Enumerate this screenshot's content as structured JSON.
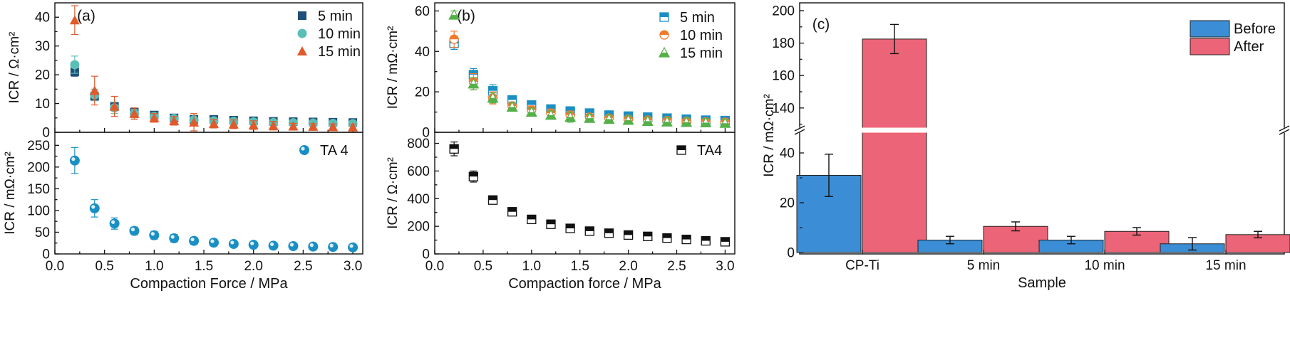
{
  "chart_data": [
    {
      "id": "a-top",
      "type": "scatter",
      "panel_label": "(a)",
      "ylabel": "ICR / Ω·cm²",
      "xlim": [
        0,
        3.1
      ],
      "ylim": [
        0,
        45
      ],
      "yticks": [
        0,
        10,
        20,
        30,
        40
      ],
      "legend_position": "top-right",
      "x": [
        0.2,
        0.4,
        0.6,
        0.8,
        1.0,
        1.2,
        1.4,
        1.6,
        1.8,
        2.0,
        2.2,
        2.4,
        2.6,
        2.8,
        3.0
      ],
      "series": [
        {
          "name": "5 min",
          "marker": "square",
          "color": "#1f4e79",
          "values": [
            21,
            12.5,
            9,
            7,
            6,
            5,
            4.5,
            4.5,
            4.2,
            4,
            3.8,
            3.7,
            3.6,
            3.5,
            3.4
          ],
          "errors": [
            1.5,
            1.5,
            1.5,
            1,
            1,
            1,
            1,
            0.8,
            0.8,
            0.8,
            0.8,
            0.8,
            0.8,
            0.8,
            0.8
          ]
        },
        {
          "name": "10 min",
          "marker": "circle",
          "color": "#5bbfb5",
          "values": [
            23.5,
            13,
            8.5,
            6.5,
            5.5,
            4.8,
            4.3,
            4,
            3.8,
            3.6,
            3.4,
            3.3,
            3.2,
            3.1,
            3.0
          ],
          "errors": [
            3,
            2,
            2,
            1.5,
            1.2,
            1,
            1,
            1,
            1,
            1,
            1,
            1,
            1,
            1,
            1
          ]
        },
        {
          "name": "15 min",
          "marker": "triangle",
          "color": "#e05a2b",
          "values": [
            39,
            14.5,
            9,
            6.5,
            5,
            4,
            3.5,
            3,
            2.8,
            2.5,
            2.3,
            2.1,
            2.0,
            1.9,
            1.8
          ],
          "errors": [
            5,
            5,
            3.5,
            2,
            1.5,
            1.5,
            3,
            1.5,
            1.5,
            1.5,
            1.5,
            1,
            1,
            1,
            1
          ]
        }
      ]
    },
    {
      "id": "a-bottom",
      "type": "scatter",
      "ylabel": "ICR / mΩ·cm²",
      "xlabel": "Compaction Force / MPa",
      "xlim": [
        0,
        3.1
      ],
      "ylim": [
        0,
        280
      ],
      "yticks": [
        0,
        50,
        100,
        150,
        200,
        250
      ],
      "xticks": [
        0.0,
        0.5,
        1.0,
        1.5,
        2.0,
        2.5,
        3.0
      ],
      "legend_position": "top-right",
      "x": [
        0.2,
        0.4,
        0.6,
        0.8,
        1.0,
        1.2,
        1.4,
        1.6,
        1.8,
        2.0,
        2.2,
        2.4,
        2.6,
        2.8,
        3.0
      ],
      "series": [
        {
          "name": "TA 4",
          "marker": "sphere",
          "color": "#1a8fc4",
          "values": [
            215,
            105,
            70,
            53,
            43,
            36,
            30,
            26,
            23,
            21,
            19,
            18,
            17,
            16,
            15
          ],
          "errors": [
            30,
            20,
            13,
            9,
            9,
            9,
            8,
            7,
            3,
            3,
            5,
            4,
            7,
            3,
            3
          ]
        }
      ]
    },
    {
      "id": "b-top",
      "type": "scatter",
      "panel_label": "(b)",
      "ylabel": "ICR / mΩ·cm²",
      "xlim": [
        0,
        3.1
      ],
      "ylim": [
        0,
        64
      ],
      "yticks": [
        0,
        20,
        40,
        60
      ],
      "legend_position": "top-right",
      "x": [
        0.2,
        0.4,
        0.6,
        0.8,
        1.0,
        1.2,
        1.4,
        1.6,
        1.8,
        2.0,
        2.2,
        2.4,
        2.6,
        2.8,
        3.0
      ],
      "series": [
        {
          "name": "5 min",
          "marker": "half-square",
          "color": "#1a8fc4",
          "values": [
            44,
            28.5,
            20.5,
            16,
            13.5,
            11.5,
            10.5,
            9.5,
            8.5,
            8,
            7.5,
            7,
            6.5,
            6,
            5.8
          ],
          "errors": [
            3,
            3,
            3,
            2,
            2,
            1.5,
            2,
            1,
            1,
            1.5,
            1,
            1,
            1,
            1,
            1
          ]
        },
        {
          "name": "10 min",
          "marker": "half-circle",
          "color": "#f07a30",
          "values": [
            46,
            25,
            17,
            13,
            11,
            9.5,
            8.5,
            7.5,
            7,
            6.5,
            6,
            5.8,
            5.5,
            5.2,
            5
          ],
          "errors": [
            4,
            4,
            3,
            2,
            2,
            2,
            2,
            1.5,
            1.5,
            1.5,
            1.5,
            1.5,
            1.5,
            1.5,
            1.5
          ]
        },
        {
          "name": "15 min",
          "marker": "half-triangle",
          "color": "#55b04a",
          "values": [
            58,
            24,
            17,
            12.5,
            10,
            8.5,
            7.5,
            7,
            6.5,
            6,
            5.5,
            5.2,
            5,
            4.8,
            4.5
          ],
          "errors": [
            2,
            3,
            2.5,
            2,
            2,
            2,
            2.5,
            2,
            2,
            2,
            2,
            2,
            2,
            2,
            2
          ]
        }
      ]
    },
    {
      "id": "b-bottom",
      "type": "scatter",
      "ylabel": "ICR / Ω·cm²",
      "xlabel": "Compaction force / MPa",
      "xlim": [
        0,
        3.1
      ],
      "ylim": [
        0,
        880
      ],
      "yticks": [
        0,
        200,
        400,
        600,
        800
      ],
      "xticks": [
        0.0,
        0.5,
        1.0,
        1.5,
        2.0,
        2.5,
        3.0
      ],
      "legend_position": "top-right",
      "x": [
        0.2,
        0.4,
        0.6,
        0.8,
        1.0,
        1.2,
        1.4,
        1.6,
        1.8,
        2.0,
        2.2,
        2.4,
        2.6,
        2.8,
        3.0
      ],
      "series": [
        {
          "name": "TA4",
          "marker": "half-square",
          "color": "#111111",
          "values": [
            760,
            560,
            390,
            305,
            250,
            215,
            185,
            165,
            150,
            137,
            127,
            115,
            105,
            95,
            88
          ],
          "errors": [
            50,
            40,
            25,
            15,
            15,
            15,
            15,
            15,
            15,
            15,
            15,
            15,
            15,
            15,
            15
          ]
        }
      ]
    },
    {
      "id": "c",
      "type": "bar",
      "panel_label": "(c)",
      "ylabel": "ICR / mΩ·cm²",
      "xlabel": "Sample",
      "categories": [
        "CP-Ti",
        "5 min",
        "10 min",
        "15 min"
      ],
      "y_axis_break": true,
      "ylim_lower": [
        0,
        50
      ],
      "ylim_upper": [
        125,
        200
      ],
      "yticks": [
        0,
        20,
        40,
        140,
        160,
        180,
        200
      ],
      "legend_position": "top-right",
      "series": [
        {
          "name": "Before",
          "color": "#3b8ed5",
          "values": [
            31,
            5,
            5,
            3.5
          ],
          "errors": [
            8.5,
            1.5,
            1.5,
            2.5
          ]
        },
        {
          "name": "After",
          "color": "#ec6477",
          "values": [
            182.5,
            10.5,
            8.5,
            7.2
          ],
          "errors": [
            9,
            1.8,
            1.5,
            1.3
          ]
        }
      ]
    }
  ]
}
